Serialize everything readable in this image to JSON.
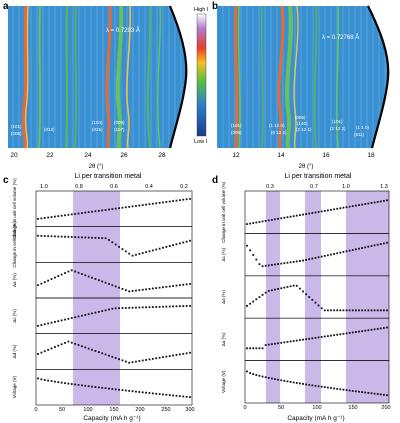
{
  "panels": {
    "a": {
      "label": "a",
      "lambda": "λ = 0.7293 Å",
      "xlabel": "2θ (°)",
      "xticks": [
        "20",
        "22",
        "24",
        "26",
        "28"
      ],
      "peaks": [
        "(101)",
        "(006)",
        "(012)",
        "(104)",
        "(015)",
        "(009)",
        "(107)"
      ]
    },
    "b": {
      "label": "b",
      "lambda": "λ = 0.72768 Å",
      "xlabel": "2θ (°)",
      "xticks": [
        "12",
        "14",
        "16",
        "18"
      ],
      "peaks": [
        "(101)",
        "(006)",
        "(1 12 0)",
        "(0 12 2)",
        "(005)",
        "(140)",
        "(2 12 1)",
        "(101)",
        "(2 12 2)",
        "(1 1 0)",
        "(511)"
      ]
    },
    "colorbar": {
      "high": "High I",
      "low": "Low I"
    },
    "c": {
      "label": "c",
      "top_axis_title": "Li per transition metal",
      "top_ticks": [
        "1.0",
        "0.8",
        "0.6",
        "0.4",
        "0.2"
      ],
      "bottom_axis_title": "Capacity (mA h g⁻¹)",
      "bottom_ticks": [
        "0",
        "50",
        "100",
        "150",
        "200",
        "250",
        "300"
      ],
      "ylabels": [
        "Change in unit cell volume (%)",
        "Change in cell slab (%)",
        "Δa (%)",
        "Δc (%)",
        "Δd (%)",
        "Voltage (V)"
      ]
    },
    "d": {
      "label": "d",
      "top_axis_title": "Li per transition metal",
      "top_ticks": [
        "0.3",
        "0.7",
        "1.0",
        "1.3"
      ],
      "bottom_axis_title": "Capacity (mA h g⁻¹)",
      "bottom_ticks": [
        "0",
        "50",
        "100",
        "150",
        "200"
      ],
      "ylabels": [
        "Change in unit cell volume (%)",
        "Δc (%)",
        "Δa (%)",
        "Δa (%)",
        "Voltage (V)"
      ]
    }
  },
  "colors": {
    "highlight": "#c9b8e8",
    "marker": "#111111",
    "heat_bg": "#3b86c6"
  }
}
